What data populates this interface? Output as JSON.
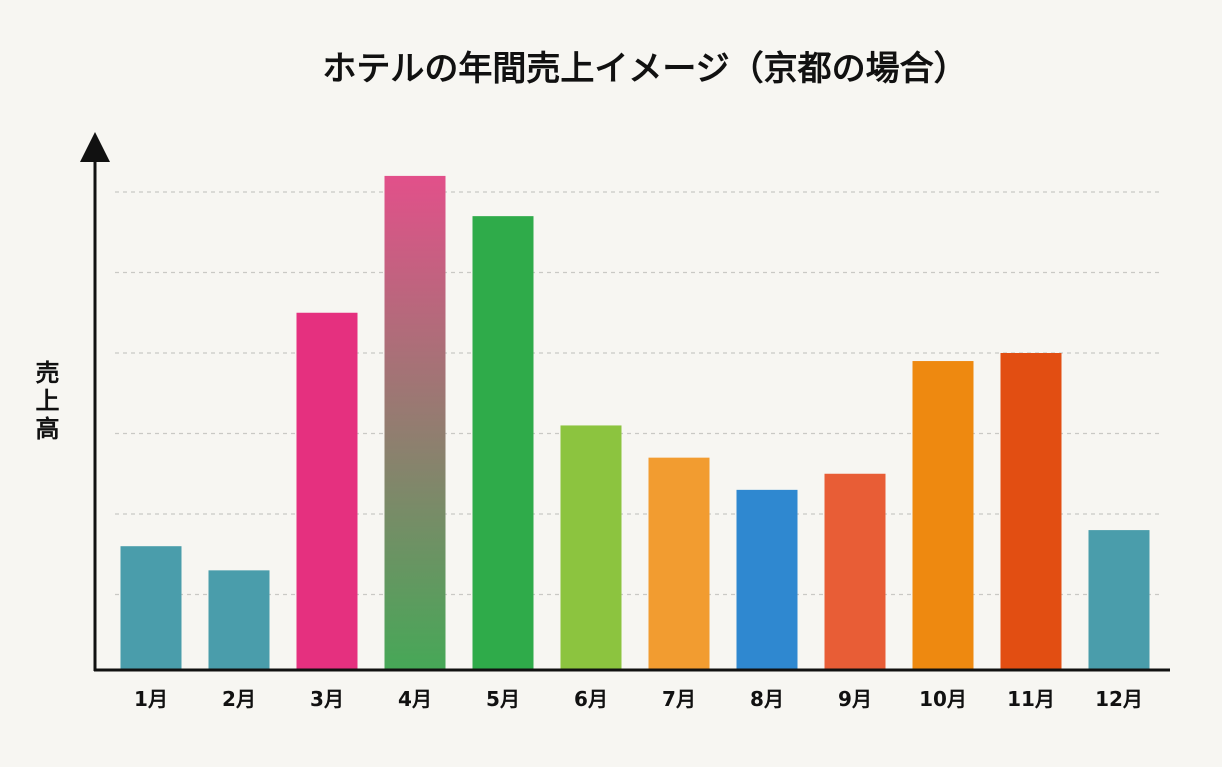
{
  "chart_data": {
    "type": "bar",
    "title": "ホテルの年間売上イメージ（京都の場合）",
    "xlabel": "",
    "ylabel": "売上高",
    "ylim": [
      0,
      6.5
    ],
    "grid": true,
    "y_tick_labels_shown": false,
    "categories": [
      "1月",
      "2月",
      "3月",
      "4月",
      "5月",
      "6月",
      "7月",
      "8月",
      "9月",
      "10月",
      "11月",
      "12月"
    ],
    "values": [
      1.6,
      1.3,
      4.5,
      6.2,
      5.7,
      3.1,
      2.7,
      2.3,
      2.5,
      3.9,
      4.0,
      1.8
    ],
    "colors": [
      "#4a9dab",
      "#4a9dab",
      "#e5307f",
      [
        "#e2508a",
        "#46a857"
      ],
      "#2fab4a",
      "#8cc43f",
      "#f29c30",
      "#2f88d0",
      "#e85d36",
      "#ee8910",
      "#e24e12",
      "#4a9dab"
    ]
  }
}
